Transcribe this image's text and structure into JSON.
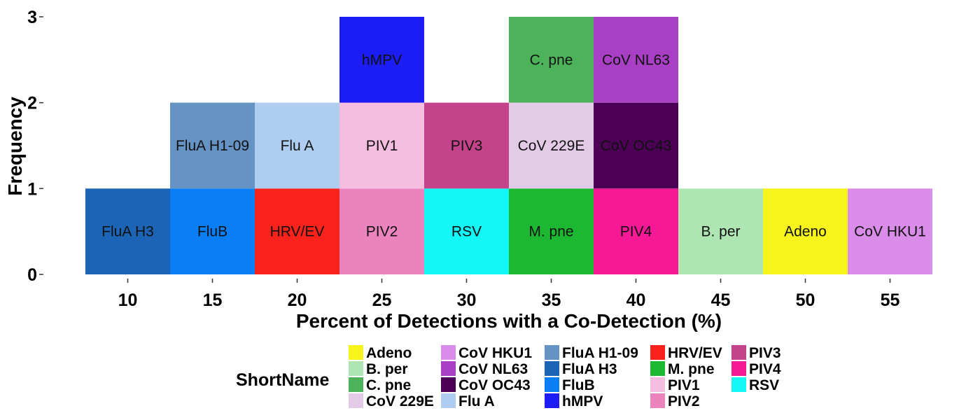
{
  "chart_data": {
    "type": "bar",
    "subtype": "stacked-tile-histogram",
    "xlabel": "Percent of Detections with a Co-Detection (%)",
    "ylabel": "Frequency",
    "x_ticks": [
      10,
      15,
      20,
      25,
      30,
      35,
      40,
      45,
      50,
      55
    ],
    "y_ticks": [
      0,
      1,
      2,
      3
    ],
    "xlim": [
      7.5,
      57.5
    ],
    "ylim": [
      0,
      3
    ],
    "bin_width": 5,
    "grid": false,
    "legend": {
      "title": "ShortName",
      "placement": "bottom",
      "columns": [
        [
          "Adeno",
          "B. per",
          "C. pne",
          "CoV 229E"
        ],
        [
          "CoV HKU1",
          "CoV NL63",
          "CoV OC43",
          "Flu A"
        ],
        [
          "FluA H1-09",
          "FluA H3",
          "FluB",
          "hMPV"
        ],
        [
          "HRV/EV",
          "M. pne",
          "PIV1",
          "PIV2"
        ],
        [
          "PIV3",
          "PIV4",
          "RSV"
        ]
      ]
    },
    "colors": {
      "Adeno": "#f7f31c",
      "B. per": "#aee6b3",
      "C. pne": "#4db35a",
      "CoV 229E": "#e3cbe8",
      "CoV HKU1": "#d98ce8",
      "CoV NL63": "#a83fc4",
      "CoV OC43": "#4b0055",
      "Flu A": "#aecdf0",
      "FluA H1-09": "#6593c3",
      "FluA H3": "#1b64b6",
      "FluB": "#0a7ff5",
      "hMPV": "#1c1cf5",
      "HRV/EV": "#f9231c",
      "M. pne": "#1cb832",
      "PIV1": "#f5bde0",
      "PIV2": "#eb84bd",
      "PIV3": "#c4438a",
      "PIV4": "#f71895",
      "RSV": "#14f7f7"
    },
    "tiles": [
      {
        "name": "FluA H3",
        "x": 10,
        "level": 1
      },
      {
        "name": "FluB",
        "x": 15,
        "level": 1
      },
      {
        "name": "FluA H1-09",
        "x": 15,
        "level": 2
      },
      {
        "name": "HRV/EV",
        "x": 20,
        "level": 1
      },
      {
        "name": "Flu A",
        "x": 20,
        "level": 2
      },
      {
        "name": "PIV2",
        "x": 25,
        "level": 1
      },
      {
        "name": "PIV1",
        "x": 25,
        "level": 2
      },
      {
        "name": "hMPV",
        "x": 25,
        "level": 3
      },
      {
        "name": "RSV",
        "x": 30,
        "level": 1
      },
      {
        "name": "PIV3",
        "x": 30,
        "level": 2
      },
      {
        "name": "M. pne",
        "x": 35,
        "level": 1
      },
      {
        "name": "CoV 229E",
        "x": 35,
        "level": 2
      },
      {
        "name": "C. pne",
        "x": 35,
        "level": 3
      },
      {
        "name": "PIV4",
        "x": 40,
        "level": 1
      },
      {
        "name": "CoV OC43",
        "x": 40,
        "level": 2
      },
      {
        "name": "CoV NL63",
        "x": 40,
        "level": 3
      },
      {
        "name": "B. per",
        "x": 45,
        "level": 1
      },
      {
        "name": "Adeno",
        "x": 50,
        "level": 1
      },
      {
        "name": "CoV HKU1",
        "x": 55,
        "level": 1
      }
    ]
  }
}
